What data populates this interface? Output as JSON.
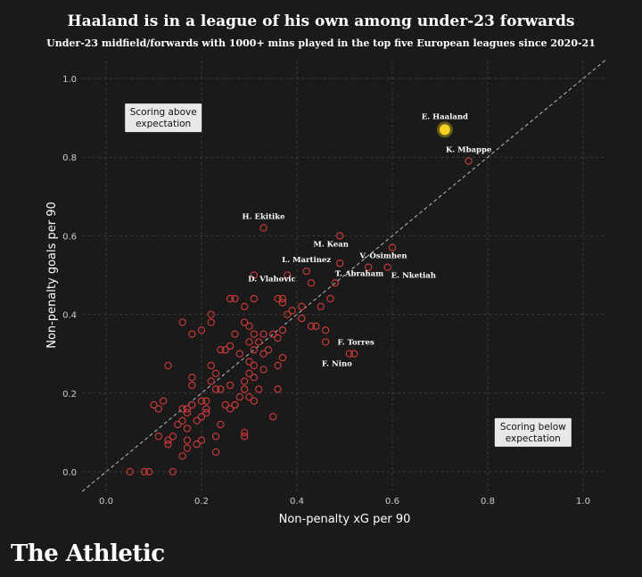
{
  "title": "Haaland is in a league of his own among under-23 forwards",
  "subtitle": "Under-23 midfield/forwards with 1000+ mins played in the top five European leagues since 2020-21",
  "brand": "The Athletic",
  "colors": {
    "background": "#1a1a1a",
    "point_stroke": "#d43a3a",
    "highlight": "#f7d21e",
    "grid": "#3a3a3a",
    "diagonal": "#bbbbbb"
  },
  "chart_data": {
    "type": "scatter",
    "xlabel": "Non-penalty xG per 90",
    "ylabel": "Non-penalty goals per 90",
    "xlim": [
      -0.05,
      1.05
    ],
    "ylim": [
      -0.05,
      1.05
    ],
    "xticks": [
      "0.0",
      "0.2",
      "0.4",
      "0.6",
      "0.8",
      "1.0"
    ],
    "yticks": [
      "0.0",
      "0.2",
      "0.4",
      "0.6",
      "0.8",
      "1.0"
    ],
    "grid": true,
    "reference_line": "y = x",
    "annotations": [
      {
        "text": [
          "Scoring above",
          "expectation"
        ],
        "x": 0.12,
        "y": 0.9
      },
      {
        "text": [
          "Scoring below",
          "expectation"
        ],
        "x": 0.895,
        "y": 0.1
      }
    ],
    "highlight": {
      "name": "E. Haaland",
      "x": 0.71,
      "y": 0.87
    },
    "labelled_points": [
      {
        "name": "E. Haaland",
        "x": 0.71,
        "y": 0.87,
        "label_dx": 0,
        "label_dy": -12,
        "anchor": "middle"
      },
      {
        "name": "K. Mbappe",
        "x": 0.76,
        "y": 0.79,
        "label_dx": 0,
        "label_dy": -10,
        "anchor": "middle"
      },
      {
        "name": "H. Ekitike",
        "x": 0.33,
        "y": 0.62,
        "label_dx": 0,
        "label_dy": -10,
        "anchor": "middle"
      },
      {
        "name": "M. Kean",
        "x": 0.49,
        "y": 0.6,
        "label_dx": -10,
        "label_dy": 12,
        "anchor": "middle"
      },
      {
        "name": "V. Osimhen",
        "x": 0.6,
        "y": 0.57,
        "label_dx": -10,
        "label_dy": 12,
        "anchor": "middle"
      },
      {
        "name": "L. Martinez",
        "x": 0.42,
        "y": 0.51,
        "label_dx": 0,
        "label_dy": -10,
        "anchor": "middle"
      },
      {
        "name": "E. Nketiah",
        "x": 0.59,
        "y": 0.52,
        "label_dx": 4,
        "label_dy": 12,
        "anchor": "start"
      },
      {
        "name": "T. Abraham",
        "x": 0.48,
        "y": 0.48,
        "label_dx": 0,
        "label_dy": -8,
        "anchor": "start"
      },
      {
        "name": "D. Vlahovic",
        "x": 0.37,
        "y": 0.48,
        "label_dx": -12,
        "label_dy": -2,
        "anchor": "middle"
      },
      {
        "name": "F. Torres",
        "x": 0.52,
        "y": 0.3,
        "label_dx": 2,
        "label_dy": -10,
        "anchor": "middle"
      },
      {
        "name": "F. Nino",
        "x": 0.51,
        "y": 0.3,
        "label_dx": -14,
        "label_dy": 14,
        "anchor": "middle"
      }
    ],
    "points": [
      [
        0.05,
        0.0
      ],
      [
        0.08,
        0.0
      ],
      [
        0.09,
        0.0
      ],
      [
        0.14,
        0.0
      ],
      [
        0.13,
        0.07
      ],
      [
        0.13,
        0.08
      ],
      [
        0.11,
        0.09
      ],
      [
        0.14,
        0.09
      ],
      [
        0.1,
        0.17
      ],
      [
        0.11,
        0.16
      ],
      [
        0.12,
        0.18
      ],
      [
        0.13,
        0.27
      ],
      [
        0.15,
        0.12
      ],
      [
        0.16,
        0.04
      ],
      [
        0.16,
        0.13
      ],
      [
        0.17,
        0.06
      ],
      [
        0.17,
        0.08
      ],
      [
        0.17,
        0.11
      ],
      [
        0.17,
        0.15
      ],
      [
        0.17,
        0.16
      ],
      [
        0.18,
        0.17
      ],
      [
        0.18,
        0.22
      ],
      [
        0.18,
        0.24
      ],
      [
        0.19,
        0.07
      ],
      [
        0.19,
        0.13
      ],
      [
        0.2,
        0.08
      ],
      [
        0.2,
        0.18
      ],
      [
        0.21,
        0.15
      ],
      [
        0.21,
        0.16
      ],
      [
        0.21,
        0.18
      ],
      [
        0.22,
        0.23
      ],
      [
        0.22,
        0.27
      ],
      [
        0.23,
        0.05
      ],
      [
        0.23,
        0.09
      ],
      [
        0.23,
        0.21
      ],
      [
        0.23,
        0.25
      ],
      [
        0.24,
        0.12
      ],
      [
        0.24,
        0.21
      ],
      [
        0.25,
        0.17
      ],
      [
        0.25,
        0.31
      ],
      [
        0.26,
        0.16
      ],
      [
        0.26,
        0.22
      ],
      [
        0.26,
        0.32
      ],
      [
        0.27,
        0.17
      ],
      [
        0.27,
        0.35
      ],
      [
        0.28,
        0.19
      ],
      [
        0.28,
        0.3
      ],
      [
        0.29,
        0.09
      ],
      [
        0.29,
        0.1
      ],
      [
        0.29,
        0.21
      ],
      [
        0.29,
        0.23
      ],
      [
        0.3,
        0.19
      ],
      [
        0.3,
        0.25
      ],
      [
        0.3,
        0.28
      ],
      [
        0.3,
        0.33
      ],
      [
        0.3,
        0.37
      ],
      [
        0.31,
        0.18
      ],
      [
        0.31,
        0.24
      ],
      [
        0.31,
        0.27
      ],
      [
        0.31,
        0.31
      ],
      [
        0.31,
        0.35
      ],
      [
        0.32,
        0.21
      ],
      [
        0.32,
        0.33
      ],
      [
        0.33,
        0.26
      ],
      [
        0.33,
        0.3
      ],
      [
        0.33,
        0.35
      ],
      [
        0.34,
        0.31
      ],
      [
        0.35,
        0.14
      ],
      [
        0.35,
        0.35
      ],
      [
        0.36,
        0.21
      ],
      [
        0.36,
        0.27
      ],
      [
        0.36,
        0.34
      ],
      [
        0.37,
        0.29
      ],
      [
        0.37,
        0.36
      ],
      [
        0.37,
        0.43
      ],
      [
        0.38,
        0.4
      ],
      [
        0.39,
        0.41
      ],
      [
        0.41,
        0.39
      ],
      [
        0.41,
        0.42
      ],
      [
        0.43,
        0.37
      ],
      [
        0.44,
        0.37
      ],
      [
        0.45,
        0.42
      ],
      [
        0.46,
        0.33
      ],
      [
        0.46,
        0.36
      ],
      [
        0.47,
        0.44
      ],
      [
        0.16,
        0.38
      ],
      [
        0.16,
        0.16
      ],
      [
        0.18,
        0.35
      ],
      [
        0.2,
        0.36
      ],
      [
        0.22,
        0.38
      ],
      [
        0.22,
        0.4
      ],
      [
        0.24,
        0.31
      ],
      [
        0.26,
        0.44
      ],
      [
        0.27,
        0.44
      ],
      [
        0.29,
        0.42
      ],
      [
        0.29,
        0.38
      ],
      [
        0.31,
        0.44
      ],
      [
        0.31,
        0.5
      ],
      [
        0.36,
        0.44
      ],
      [
        0.37,
        0.44
      ],
      [
        0.38,
        0.5
      ],
      [
        0.42,
        0.51
      ],
      [
        0.43,
        0.48
      ],
      [
        0.48,
        0.48
      ],
      [
        0.49,
        0.53
      ],
      [
        0.49,
        0.6
      ],
      [
        0.55,
        0.52
      ],
      [
        0.59,
        0.52
      ],
      [
        0.6,
        0.57
      ],
      [
        0.33,
        0.62
      ],
      [
        0.76,
        0.79
      ],
      [
        0.51,
        0.3
      ],
      [
        0.52,
        0.3
      ],
      [
        0.27,
        0.17
      ],
      [
        0.2,
        0.14
      ]
    ]
  }
}
